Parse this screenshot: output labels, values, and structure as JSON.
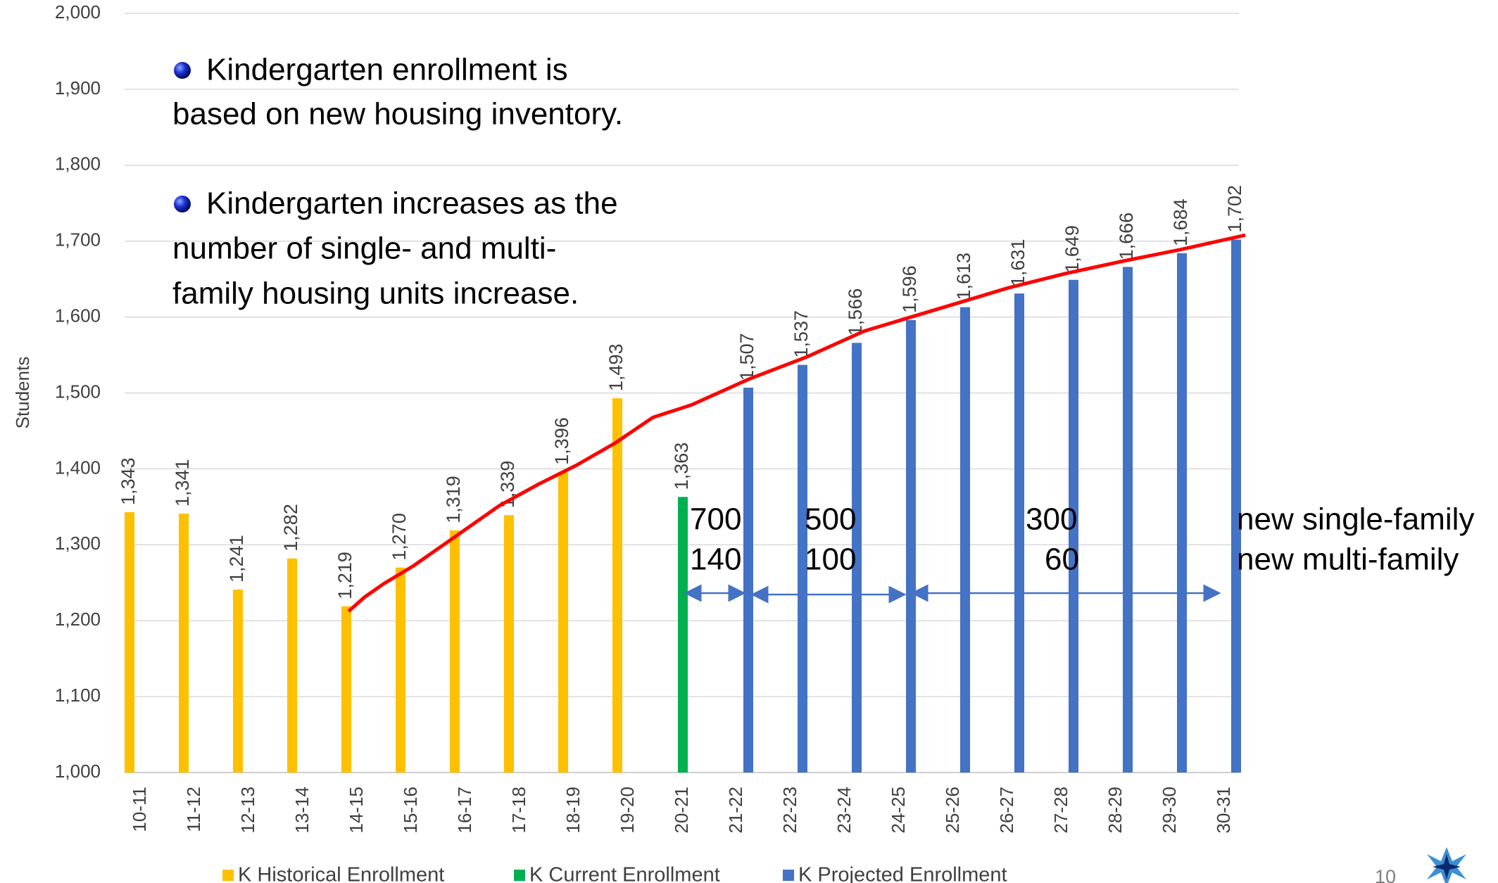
{
  "chart_data": {
    "type": "bar",
    "y_axis_label": "Students",
    "categories": [
      "10-11",
      "11-12",
      "12-13",
      "13-14",
      "14-15",
      "15-16",
      "16-17",
      "17-18",
      "18-19",
      "19-20",
      "20-21",
      "21-22",
      "22-23",
      "23-24",
      "24-25",
      "25-26",
      "26-27",
      "27-28",
      "28-29",
      "29-30",
      "30-31"
    ],
    "series": [
      {
        "name": "K Historical Enrollment",
        "color": "#ffc000",
        "values": [
          1343,
          1341,
          1241,
          1282,
          1219,
          1270,
          1319,
          1339,
          1396,
          1493,
          null,
          null,
          null,
          null,
          null,
          null,
          null,
          null,
          null,
          null,
          null
        ],
        "value_labels": [
          "1,343",
          "1,341",
          "1,241",
          "1,282",
          "1,219",
          "1,270",
          "1,319",
          "1,339",
          "1,396",
          "1,493",
          null,
          null,
          null,
          null,
          null,
          null,
          null,
          null,
          null,
          null,
          null
        ]
      },
      {
        "name": "K Current Enrollment",
        "color": "#00b050",
        "values": [
          null,
          null,
          null,
          null,
          null,
          null,
          null,
          null,
          null,
          null,
          1363,
          null,
          null,
          null,
          null,
          null,
          null,
          null,
          null,
          null,
          null
        ],
        "value_labels": [
          null,
          null,
          null,
          null,
          null,
          null,
          null,
          null,
          null,
          null,
          "1,363",
          null,
          null,
          null,
          null,
          null,
          null,
          null,
          null,
          null,
          null
        ]
      },
      {
        "name": "K Projected Enrollment",
        "color": "#4472c4",
        "values": [
          null,
          null,
          null,
          null,
          null,
          null,
          null,
          null,
          null,
          null,
          null,
          1507,
          1537,
          1566,
          1596,
          1613,
          1631,
          1649,
          1666,
          1684,
          1702
        ],
        "value_labels": [
          null,
          null,
          null,
          null,
          null,
          null,
          null,
          null,
          null,
          null,
          null,
          "1,507",
          "1,537",
          "1,566",
          "1,596",
          "1,613",
          "1,631",
          "1,649",
          "1,666",
          "1,684",
          "1,702"
        ]
      }
    ],
    "ylim": [
      1000,
      2000
    ],
    "yticks": [
      {
        "value": 1000,
        "label": "1,000"
      },
      {
        "value": 1100,
        "label": "1,100"
      },
      {
        "value": 1200,
        "label": "1,200"
      },
      {
        "value": 1300,
        "label": "1,300"
      },
      {
        "value": 1400,
        "label": "1,400"
      },
      {
        "value": 1500,
        "label": "1,500"
      },
      {
        "value": 1600,
        "label": "1,600"
      },
      {
        "value": 1700,
        "label": "1,700"
      },
      {
        "value": 1800,
        "label": "1,800"
      },
      {
        "value": 1900,
        "label": "1,900"
      },
      {
        "value": 2000,
        "label": "2,000"
      }
    ],
    "grid": true,
    "legend": "bottom",
    "annotations": {
      "bullet_1": [
        "Kindergarten enrollment is",
        "based on new housing inventory."
      ],
      "bullet_2": [
        "Kindergarten increases as the",
        "number of single- and multi-",
        "family housing units increase."
      ],
      "single_family_counts": [
        "700",
        "500",
        "300"
      ],
      "multi_family_counts": [
        "140",
        "100",
        "60"
      ],
      "single_family_label": "new single-family",
      "multi_family_label": "new multi-family",
      "page_number": "10"
    }
  }
}
